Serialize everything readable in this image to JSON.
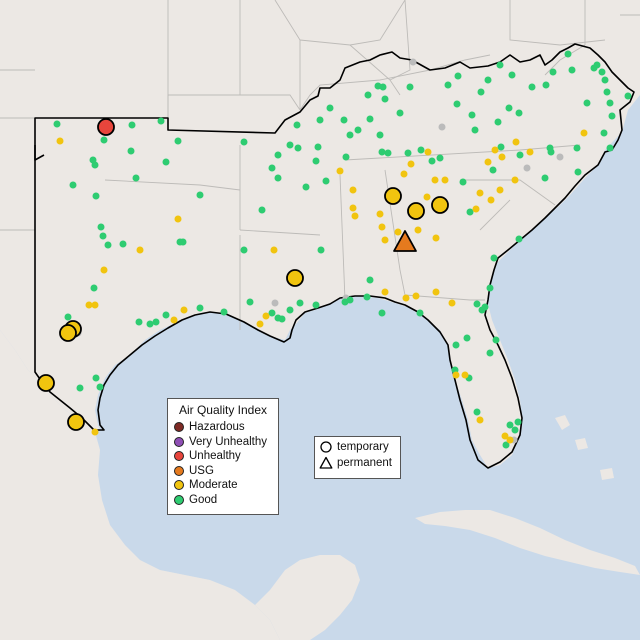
{
  "legend": {
    "title": "Air Quality Index",
    "levels": [
      {
        "label": "Hazardous",
        "color": "#7e2a25"
      },
      {
        "label": "Very Unhealthy",
        "color": "#8f4fb5"
      },
      {
        "label": "Unhealthy",
        "color": "#e8453c"
      },
      {
        "label": "USG",
        "color": "#e57a1e"
      },
      {
        "label": "Moderate",
        "color": "#f1c40f"
      },
      {
        "label": "Good",
        "color": "#2ecc71"
      }
    ]
  },
  "monitor_types": {
    "temporary": "temporary",
    "permanent": "permanent"
  },
  "colors": {
    "water": "#c9d9ea",
    "land": "#ece8e4",
    "state_border": "#bdbbb8",
    "region_outline": "#000000",
    "no_data": "#bbbbbb"
  }
}
